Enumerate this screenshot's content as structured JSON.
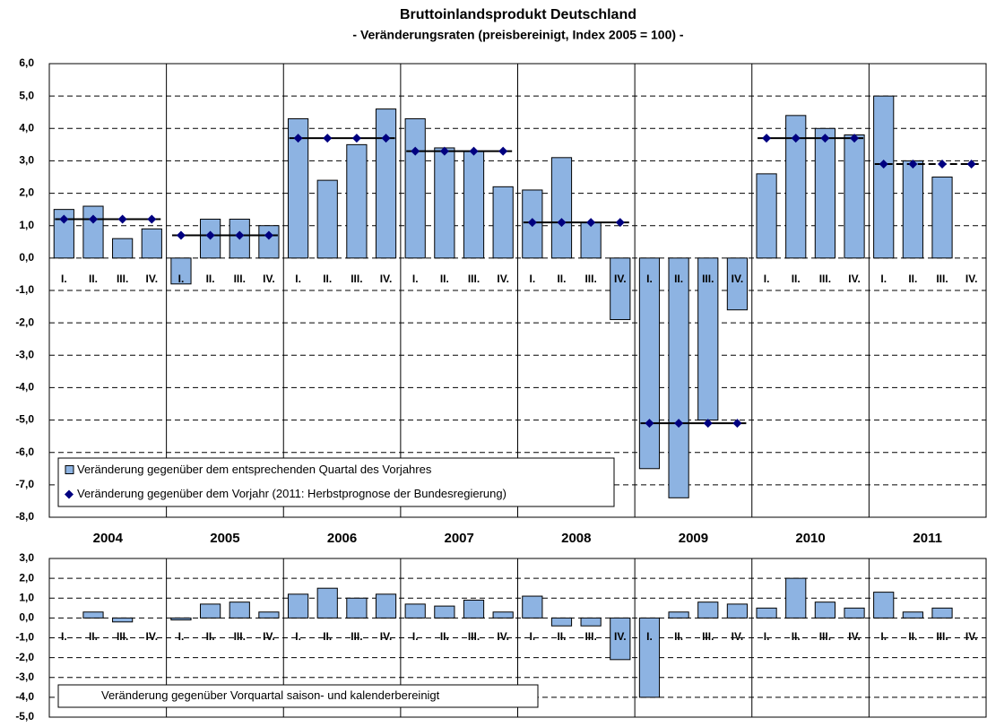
{
  "chart_data": [
    {
      "type": "bar",
      "title": "Bruttoinlandsprodukt Deutschland",
      "subtitle": "- Veränderungsraten (preisbereinigt, Index 2005 = 100) -",
      "years": [
        "2004",
        "2005",
        "2006",
        "2007",
        "2008",
        "2009",
        "2010",
        "2011"
      ],
      "categories": [
        "I.",
        "II.",
        "III.",
        "IV.",
        "I.",
        "II.",
        "III.",
        "IV.",
        "I.",
        "II.",
        "III.",
        "IV.",
        "I.",
        "II.",
        "III.",
        "IV.",
        "I.",
        "II.",
        "III.",
        "IV.",
        "I.",
        "II.",
        "III.",
        "IV.",
        "I.",
        "II.",
        "III.",
        "IV.",
        "I.",
        "II.",
        "III.",
        "IV."
      ],
      "series": [
        {
          "name": "Veränderung gegenüber dem entsprechenden Quartal des Vorjahres",
          "type": "bar",
          "color": "#8db3e2",
          "values": [
            1.5,
            1.6,
            0.6,
            0.9,
            -0.8,
            1.2,
            1.2,
            1.0,
            4.3,
            2.4,
            3.5,
            4.6,
            4.3,
            3.4,
            3.3,
            2.2,
            2.1,
            3.1,
            1.1,
            -1.9,
            -6.5,
            -7.4,
            -5.0,
            -1.6,
            2.6,
            4.4,
            4.0,
            3.8,
            5.0,
            3.0,
            2.5,
            null
          ]
        },
        {
          "name": "Veränderung gegenüber dem Vorjahr (2011: Herbstprognose der Bundesregierung)",
          "type": "line",
          "color": "#000080",
          "values": [
            1.2,
            1.2,
            1.2,
            1.2,
            0.7,
            0.7,
            0.7,
            0.7,
            3.7,
            3.7,
            3.7,
            3.7,
            3.3,
            3.3,
            3.3,
            3.3,
            1.1,
            1.1,
            1.1,
            1.1,
            -5.1,
            -5.1,
            -5.1,
            -5.1,
            3.7,
            3.7,
            3.7,
            3.7,
            2.9,
            2.9,
            2.9,
            2.9
          ]
        }
      ],
      "ylim": [
        -8,
        6
      ],
      "yticks": [
        {
          "value": 6,
          "label": "6,0"
        },
        {
          "value": 5,
          "label": "5,0"
        },
        {
          "value": 4,
          "label": "4,0"
        },
        {
          "value": 3,
          "label": "3,0"
        },
        {
          "value": 2,
          "label": "2,0"
        },
        {
          "value": 1,
          "label": "1,0"
        },
        {
          "value": 0,
          "label": "0,0"
        },
        {
          "value": -1,
          "label": "-1,0"
        },
        {
          "value": -2,
          "label": "-2,0"
        },
        {
          "value": -3,
          "label": "-3,0"
        },
        {
          "value": -4,
          "label": "-4,0"
        },
        {
          "value": -5,
          "label": "-5,0"
        },
        {
          "value": -6,
          "label": "-6,0"
        },
        {
          "value": -7,
          "label": "-7,0"
        },
        {
          "value": -8,
          "label": "-8,0"
        }
      ],
      "grid": true,
      "legend": "lower left"
    },
    {
      "type": "bar",
      "categories": [
        "I.",
        "II.",
        "III.",
        "IV.",
        "I.",
        "II.",
        "III.",
        "IV.",
        "I.",
        "II.",
        "III.",
        "IV.",
        "I.",
        "II.",
        "III.",
        "IV.",
        "I.",
        "II.",
        "III.",
        "IV.",
        "I.",
        "II.",
        "III.",
        "IV.",
        "I.",
        "II.",
        "III.",
        "IV.",
        "I.",
        "II.",
        "III.",
        "IV."
      ],
      "series": [
        {
          "name": "Veränderung gegenüber Vorquartal saison- und kalenderbereinigt",
          "type": "bar",
          "color": "#8db3e2",
          "values": [
            0.0,
            0.3,
            -0.2,
            0.0,
            -0.1,
            0.7,
            0.8,
            0.3,
            1.2,
            1.5,
            1.0,
            1.2,
            0.7,
            0.6,
            0.9,
            0.3,
            1.1,
            -0.4,
            -0.4,
            -2.1,
            -4.0,
            0.3,
            0.8,
            0.7,
            0.5,
            2.0,
            0.8,
            0.5,
            1.3,
            0.3,
            0.5,
            null
          ]
        }
      ],
      "ylim": [
        -5,
        3
      ],
      "yticks": [
        {
          "value": 3,
          "label": "3,0"
        },
        {
          "value": 2,
          "label": "2,0"
        },
        {
          "value": 1,
          "label": "1,0"
        },
        {
          "value": 0,
          "label": "0,0"
        },
        {
          "value": -1,
          "label": "-1,0"
        },
        {
          "value": -2,
          "label": "-2,0"
        },
        {
          "value": -3,
          "label": "-3,0"
        },
        {
          "value": -4,
          "label": "-4,0"
        },
        {
          "value": -5,
          "label": "-5,0"
        }
      ],
      "grid": true,
      "legend": "lower left"
    }
  ]
}
